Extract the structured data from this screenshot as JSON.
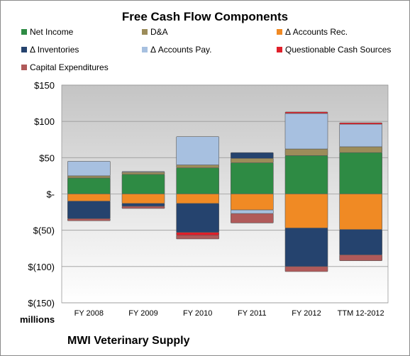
{
  "chart_data": {
    "type": "bar",
    "stacked": true,
    "title": "Free Cash Flow Components",
    "units_label": "millions",
    "footer": "MWI Veterinary Supply",
    "categories": [
      "FY 2008",
      "FY 2009",
      "FY 2010",
      "FY 2011",
      "FY 2012",
      "TTM 12-2012"
    ],
    "ylim": [
      -150,
      150
    ],
    "yticks": [
      150,
      100,
      50,
      0,
      -50,
      -100,
      -150
    ],
    "ytick_labels": [
      "$150",
      "$100",
      "$50",
      "$-",
      "$(50)",
      "$(100)",
      "$(150)"
    ],
    "grid": true,
    "legend_position": "top",
    "series": [
      {
        "name": "Net Income",
        "color": "#2e8b44",
        "values": [
          22,
          27,
          36,
          43,
          53,
          57
        ]
      },
      {
        "name": "D&A",
        "color": "#9c8c5a",
        "values": [
          3,
          3,
          4,
          6,
          9,
          8
        ]
      },
      {
        "name": "Δ Accounts Rec.",
        "color": "#f08a24",
        "values": [
          -10,
          -13,
          -13,
          -22,
          -47,
          -49
        ]
      },
      {
        "name": "Δ Inventories",
        "color": "#25436e",
        "values": [
          -24,
          -4,
          -40,
          8,
          -53,
          -35
        ]
      },
      {
        "name": "Δ Accounts Pay.",
        "color": "#a7c0e0",
        "values": [
          20,
          1,
          39,
          -5,
          49,
          31
        ]
      },
      {
        "name": "Questionable Cash Sources",
        "color": "#e0202a",
        "values": [
          0,
          0,
          -4,
          0,
          2,
          2
        ]
      },
      {
        "name": "Capital Expenditures",
        "color": "#b05a5a",
        "values": [
          -3,
          -3,
          -5,
          -13,
          -7,
          -8
        ]
      }
    ]
  }
}
